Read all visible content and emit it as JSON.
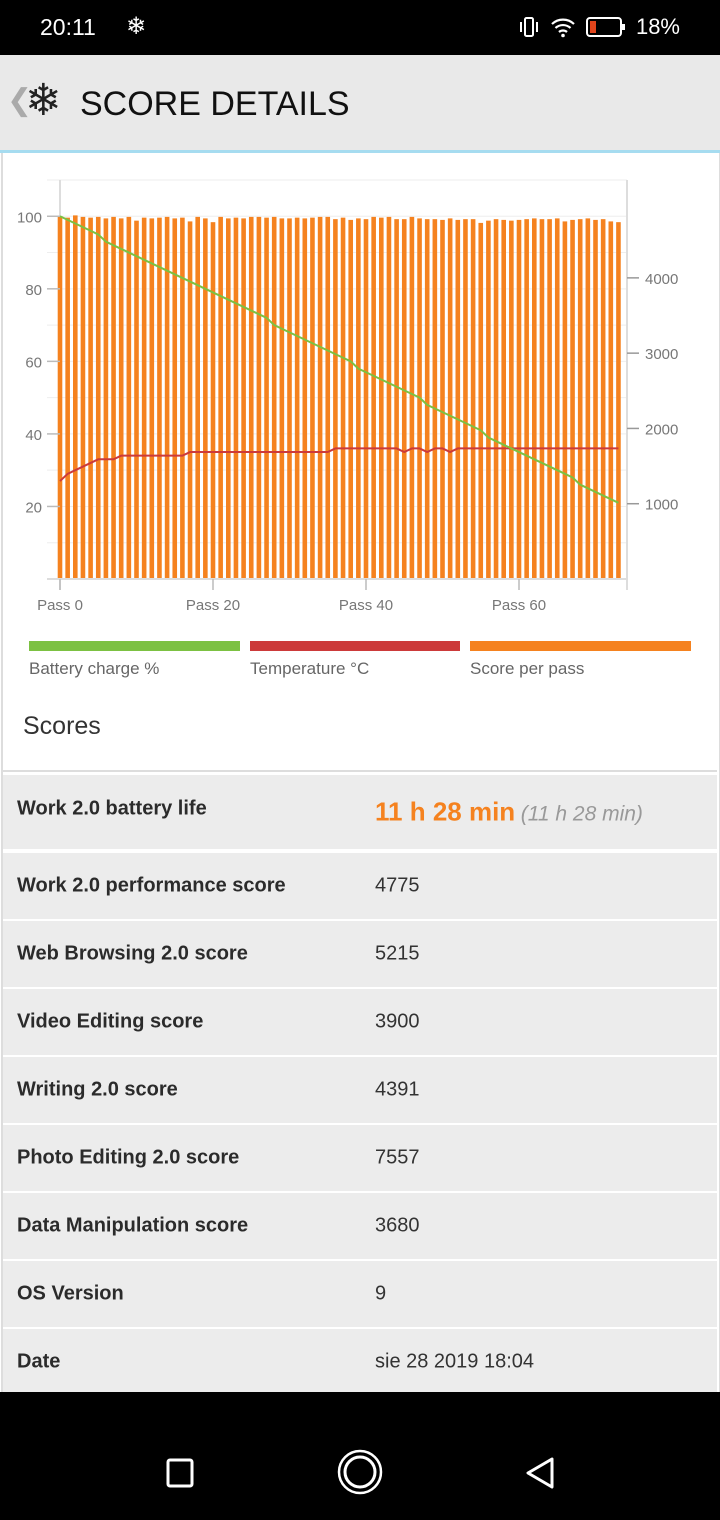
{
  "status_bar": {
    "time": "20:11",
    "notification_icon": "snowflake-icon",
    "battery_percent": "18%",
    "battery_level": 18,
    "icons": [
      "vibrate-icon",
      "wifi-icon",
      "battery-icon"
    ]
  },
  "header": {
    "title": "SCORE DETAILS",
    "back_icon": "chevron-left-icon",
    "logo_icon": "snowflake-icon"
  },
  "colors": {
    "battery": "#7cc142",
    "temperature": "#cc3a3a",
    "score": "#f5821f",
    "accent_line": "#a6dcf0"
  },
  "chart_data": {
    "type": "bar+line",
    "x_ticks": [
      "Pass 0",
      "Pass 20",
      "Pass 40",
      "Pass 60"
    ],
    "x_tick_values": [
      0,
      20,
      40,
      60
    ],
    "left_axis": {
      "ticks": [
        20,
        40,
        60,
        80,
        100
      ],
      "range": [
        0,
        110
      ]
    },
    "right_axis": {
      "ticks": [
        1000,
        2000,
        3000,
        4000
      ],
      "range": [
        0,
        5300
      ]
    },
    "grid": true,
    "legend_placement": "bottom",
    "series": [
      {
        "name": "Battery charge %",
        "type": "line",
        "axis": "left",
        "color": "#7cc142",
        "values": [
          100,
          99,
          98,
          97,
          96,
          95,
          93,
          92,
          91,
          90,
          89,
          88,
          87,
          86,
          85,
          84,
          83,
          82,
          81,
          80,
          79,
          78,
          77,
          76,
          75,
          74,
          73,
          72,
          70,
          69,
          68,
          67,
          66,
          65,
          64,
          63,
          62,
          61,
          60,
          58,
          57,
          56,
          55,
          54,
          53,
          52,
          51,
          50,
          48,
          47,
          46,
          45,
          44,
          43,
          42,
          41,
          39,
          38,
          37,
          36,
          35,
          34,
          33,
          32,
          31,
          30,
          29,
          28,
          26,
          25,
          24,
          23,
          22,
          21
        ]
      },
      {
        "name": "Temperature °C",
        "type": "line",
        "axis": "left",
        "color": "#cc3a3a",
        "values": [
          27,
          29,
          30,
          31,
          32,
          33,
          33,
          33,
          34,
          34,
          34,
          34,
          34,
          34,
          34,
          34,
          34,
          35,
          35,
          35,
          35,
          35,
          35,
          35,
          35,
          35,
          35,
          35,
          35,
          35,
          35,
          35,
          35,
          35,
          35,
          35,
          36,
          36,
          36,
          36,
          36,
          36,
          36,
          36,
          36,
          35,
          36,
          36,
          35,
          36,
          36,
          35,
          36,
          36,
          36,
          36,
          36,
          36,
          36,
          36,
          36,
          36,
          36,
          36,
          36,
          36,
          36,
          36,
          36,
          36,
          36,
          36,
          36,
          36
        ]
      },
      {
        "name": "Score per pass",
        "type": "bar",
        "axis": "right",
        "color": "#f5821f",
        "values": [
          4820,
          4800,
          4830,
          4810,
          4800,
          4810,
          4790,
          4810,
          4790,
          4810,
          4760,
          4800,
          4790,
          4800,
          4810,
          4790,
          4800,
          4750,
          4810,
          4790,
          4740,
          4810,
          4790,
          4800,
          4790,
          4810,
          4810,
          4800,
          4810,
          4790,
          4790,
          4800,
          4790,
          4800,
          4810,
          4810,
          4780,
          4800,
          4770,
          4790,
          4780,
          4810,
          4800,
          4810,
          4780,
          4780,
          4810,
          4790,
          4780,
          4780,
          4770,
          4790,
          4770,
          4780,
          4780,
          4730,
          4760,
          4780,
          4770,
          4760,
          4770,
          4780,
          4790,
          4780,
          4780,
          4790,
          4750,
          4770,
          4780,
          4790,
          4770,
          4780,
          4750,
          4740
        ]
      }
    ]
  },
  "scores": {
    "title": "Scores",
    "rows": [
      {
        "label": "Work 2.0 battery life",
        "value": "11 h 28 min",
        "sub": "(11 h 28 min)"
      },
      {
        "label": "Work 2.0 performance score",
        "value": "4775"
      },
      {
        "label": "Web Browsing 2.0 score",
        "value": "5215"
      },
      {
        "label": "Video Editing score",
        "value": "3900"
      },
      {
        "label": "Writing 2.0 score",
        "value": "4391"
      },
      {
        "label": "Photo Editing 2.0 score",
        "value": "7557"
      },
      {
        "label": "Data Manipulation score",
        "value": "3680"
      },
      {
        "label": "OS Version",
        "value": "9"
      },
      {
        "label": "Date",
        "value": "sie 28 2019 18:04"
      }
    ]
  },
  "nav_bar": {
    "icons": [
      "recents-square-icon",
      "home-circle-icon",
      "back-triangle-icon"
    ]
  }
}
